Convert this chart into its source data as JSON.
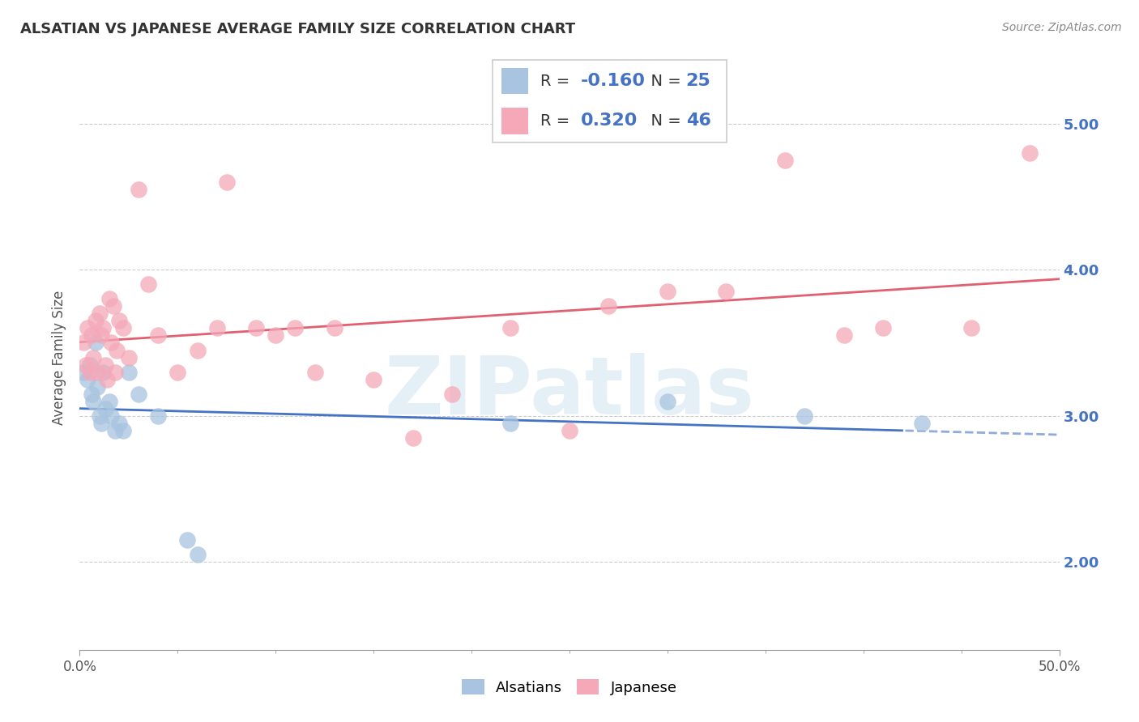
{
  "title": "ALSATIAN VS JAPANESE AVERAGE FAMILY SIZE CORRELATION CHART",
  "source": "Source: ZipAtlas.com",
  "ylabel": "Average Family Size",
  "watermark": "ZIPatlas",
  "legend_r_blue": "-0.160",
  "legend_n_blue": "25",
  "legend_r_pink": "0.320",
  "legend_n_pink": "46",
  "blue_color": "#a8c4e0",
  "pink_color": "#f4a8b8",
  "blue_line_color": "#4472c4",
  "pink_line_color": "#e06070",
  "xlim": [
    0.0,
    50.0
  ],
  "ylim": [
    1.4,
    5.4
  ],
  "yticks": [
    2.0,
    3.0,
    4.0,
    5.0
  ],
  "alsatian_x": [
    0.2,
    0.4,
    0.5,
    0.6,
    0.7,
    0.8,
    0.9,
    1.0,
    1.1,
    1.2,
    1.3,
    1.5,
    1.6,
    1.8,
    2.0,
    2.2,
    2.5,
    3.0,
    4.0,
    5.5,
    6.0,
    22.0,
    30.0,
    37.0,
    43.0
  ],
  "alsatian_y": [
    3.3,
    3.25,
    3.35,
    3.15,
    3.1,
    3.5,
    3.2,
    3.0,
    2.95,
    3.3,
    3.05,
    3.1,
    3.0,
    2.9,
    2.95,
    2.9,
    3.3,
    3.15,
    3.0,
    2.15,
    2.05,
    2.95,
    3.1,
    3.0,
    2.95
  ],
  "japanese_x": [
    0.2,
    0.3,
    0.4,
    0.5,
    0.6,
    0.7,
    0.8,
    0.9,
    1.0,
    1.1,
    1.2,
    1.3,
    1.4,
    1.5,
    1.6,
    1.7,
    1.8,
    1.9,
    2.0,
    2.2,
    2.5,
    3.0,
    3.5,
    4.0,
    5.0,
    6.0,
    7.0,
    7.5,
    9.0,
    10.0,
    11.0,
    12.0,
    13.0,
    15.0,
    17.0,
    19.0,
    22.0,
    25.0,
    27.0,
    30.0,
    33.0,
    36.0,
    39.0,
    41.0,
    45.5,
    48.5
  ],
  "japanese_y": [
    3.5,
    3.35,
    3.6,
    3.3,
    3.55,
    3.4,
    3.65,
    3.3,
    3.7,
    3.55,
    3.6,
    3.35,
    3.25,
    3.8,
    3.5,
    3.75,
    3.3,
    3.45,
    3.65,
    3.6,
    3.4,
    4.55,
    3.9,
    3.55,
    3.3,
    3.45,
    3.6,
    4.6,
    3.6,
    3.55,
    3.6,
    3.3,
    3.6,
    3.25,
    2.85,
    3.15,
    3.6,
    2.9,
    3.75,
    3.85,
    3.85,
    4.75,
    3.55,
    3.6,
    3.6,
    4.8
  ]
}
